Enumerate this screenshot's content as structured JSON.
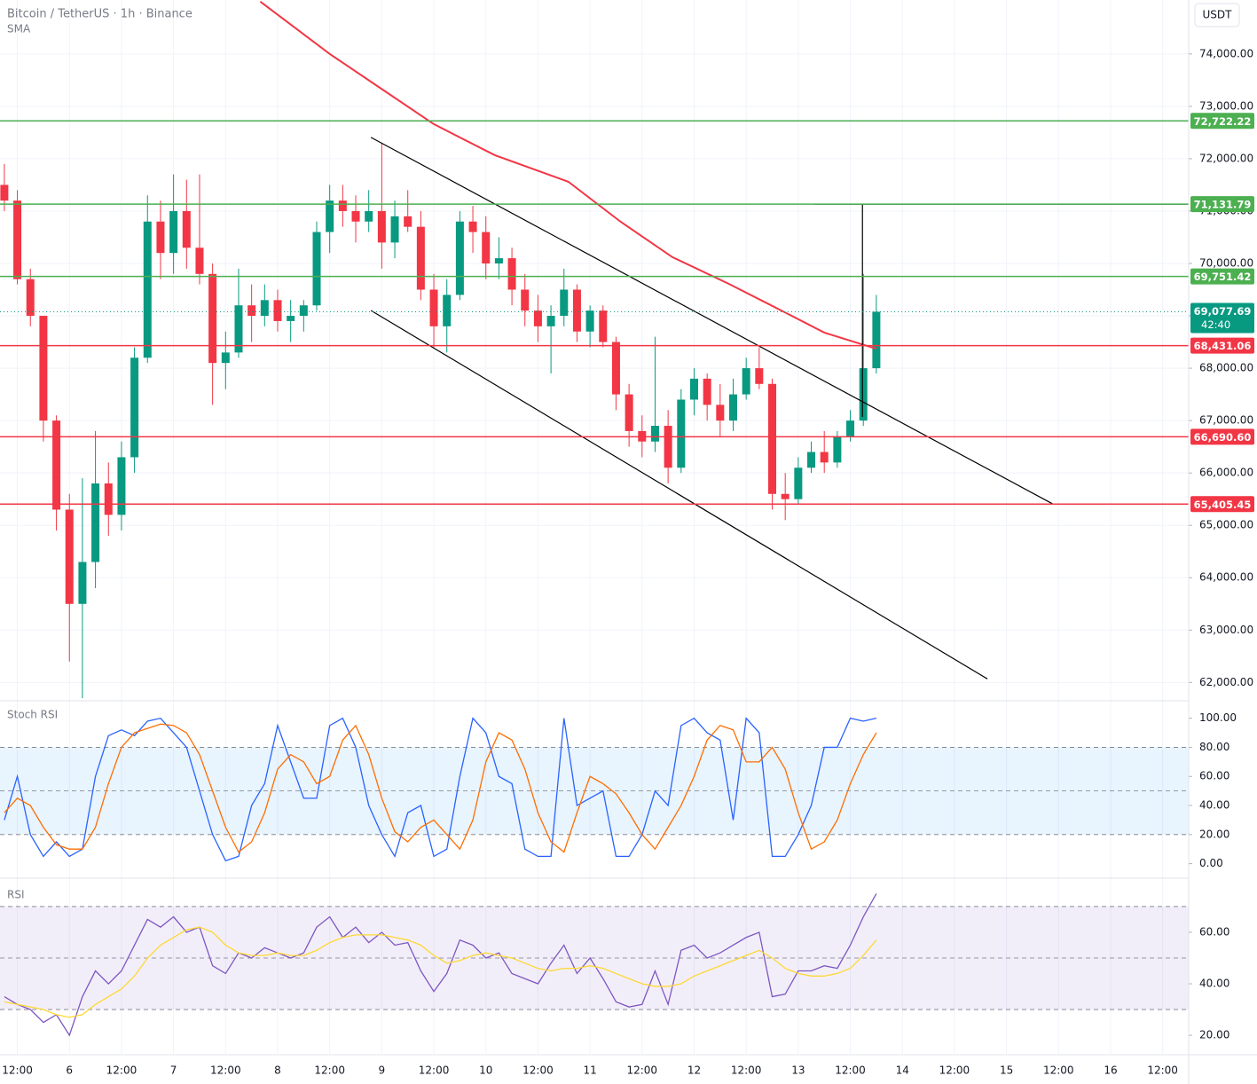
{
  "chart_data": [
    {
      "type": "candlestick",
      "title": "Bitcoin / TetherUS · 1h · Binance",
      "currency": "USDT",
      "grid": true,
      "up_color": "#089981",
      "down_color": "#f23645",
      "xlim": [
        -4,
        270
      ],
      "xticks": [
        {
          "value": 0,
          "label": "12:00"
        },
        {
          "value": 12,
          "label": "6"
        },
        {
          "value": 24,
          "label": "12:00"
        },
        {
          "value": 36,
          "label": "7"
        },
        {
          "value": 48,
          "label": "12:00"
        },
        {
          "value": 60,
          "label": "8"
        },
        {
          "value": 72,
          "label": "12:00"
        },
        {
          "value": 84,
          "label": "9"
        },
        {
          "value": 96,
          "label": "12:00"
        },
        {
          "value": 108,
          "label": "10"
        },
        {
          "value": 120,
          "label": "12:00"
        },
        {
          "value": 132,
          "label": "11"
        },
        {
          "value": 144,
          "label": "12:00"
        },
        {
          "value": 156,
          "label": "12"
        },
        {
          "value": 168,
          "label": "12:00"
        },
        {
          "value": 180,
          "label": "13"
        },
        {
          "value": 192,
          "label": "12:00"
        },
        {
          "value": 204,
          "label": "14"
        },
        {
          "value": 216,
          "label": "12:00"
        },
        {
          "value": 228,
          "label": "15"
        },
        {
          "value": 240,
          "label": "12:00"
        },
        {
          "value": 252,
          "label": "16"
        },
        {
          "value": 264,
          "label": "12:00"
        }
      ],
      "ylim": [
        61650,
        75030
      ],
      "yticks": [
        {
          "value": 62000,
          "label": "62,000.00"
        },
        {
          "value": 63000,
          "label": "63,000.00"
        },
        {
          "value": 64000,
          "label": "64,000.00"
        },
        {
          "value": 65000,
          "label": "65,000.00"
        },
        {
          "value": 66000,
          "label": "66,000.00"
        },
        {
          "value": 67000,
          "label": "67,000.00"
        },
        {
          "value": 68000,
          "label": "68,000.00"
        },
        {
          "value": 69000,
          "label": "69,000.00"
        },
        {
          "value": 70000,
          "label": "70,000.00"
        },
        {
          "value": 71000,
          "label": "71,000.00"
        },
        {
          "value": 72000,
          "label": "72,000.00"
        },
        {
          "value": 73000,
          "label": "73,000.00"
        },
        {
          "value": 74000,
          "label": "74,000.00"
        }
      ],
      "x": [
        -3,
        0,
        3,
        6,
        9,
        12,
        15,
        18,
        21,
        24,
        27,
        30,
        33,
        36,
        39,
        42,
        45,
        48,
        51,
        54,
        57,
        60,
        63,
        66,
        69,
        72,
        75,
        78,
        81,
        84,
        87,
        90,
        93,
        96,
        99,
        102,
        105,
        108,
        111,
        114,
        117,
        120,
        123,
        126,
        129,
        132,
        135,
        138,
        141,
        144,
        147,
        150,
        153,
        156,
        159,
        162,
        165,
        168,
        171,
        174,
        177,
        180,
        183,
        186,
        189,
        192,
        195,
        198
      ],
      "open": [
        71500,
        71200,
        69700,
        69000,
        67000,
        65300,
        63500,
        64300,
        65800,
        65200,
        66300,
        68200,
        70800,
        70200,
        71000,
        70300,
        69800,
        68100,
        68300,
        69200,
        69000,
        69300,
        68900,
        69000,
        69200,
        70600,
        71200,
        71000,
        70800,
        71000,
        70400,
        70900,
        70700,
        69500,
        68800,
        69400,
        70800,
        70600,
        70000,
        70100,
        69500,
        69100,
        68800,
        69000,
        69500,
        68700,
        69100,
        68500,
        67500,
        66800,
        66600,
        66900,
        66100,
        67400,
        67800,
        67300,
        67000,
        67500,
        68000,
        67700,
        65600,
        65500,
        66100,
        66400,
        66200,
        66700,
        67000,
        68000
      ],
      "high": [
        71900,
        71400,
        69900,
        69000,
        67100,
        65600,
        65900,
        66800,
        66200,
        66600,
        68400,
        71300,
        71200,
        71700,
        71600,
        71700,
        70000,
        68700,
        69900,
        69600,
        69600,
        69500,
        69300,
        69300,
        70800,
        71500,
        71500,
        71300,
        71400,
        72300,
        71200,
        71400,
        71000,
        69800,
        69700,
        71000,
        71100,
        70900,
        70500,
        70300,
        69800,
        69400,
        69200,
        69900,
        69600,
        69200,
        69200,
        68600,
        67700,
        67100,
        68600,
        67200,
        67600,
        68000,
        67900,
        67700,
        67800,
        68200,
        68400,
        67800,
        66000,
        66300,
        66600,
        66800,
        66800,
        67200,
        69800,
        69400
      ],
      "low": [
        71000,
        69600,
        68800,
        66600,
        64900,
        62400,
        61700,
        63800,
        64800,
        64900,
        66000,
        68100,
        69700,
        69800,
        69900,
        69600,
        67300,
        67600,
        68200,
        68500,
        68800,
        68700,
        68500,
        68700,
        69100,
        70200,
        70700,
        70400,
        70600,
        69900,
        70100,
        70600,
        69300,
        68400,
        68300,
        69300,
        70200,
        69700,
        69700,
        69200,
        68800,
        68500,
        67900,
        68800,
        68500,
        68400,
        68400,
        67200,
        66500,
        66300,
        66400,
        65800,
        66000,
        67100,
        67000,
        66700,
        66800,
        67400,
        67600,
        65300,
        65100,
        65400,
        66000,
        66000,
        66100,
        66600,
        66900,
        67900
      ],
      "close": [
        71200,
        69700,
        69000,
        67000,
        65300,
        63500,
        64300,
        65800,
        65200,
        66300,
        68200,
        70800,
        70200,
        71000,
        70300,
        69800,
        68100,
        68300,
        69200,
        69000,
        69300,
        68900,
        69000,
        69200,
        70600,
        71200,
        71000,
        70800,
        71000,
        70400,
        70900,
        70700,
        69500,
        68800,
        69400,
        70800,
        70600,
        70000,
        70100,
        69500,
        69100,
        68800,
        69000,
        69500,
        68700,
        69100,
        68500,
        67500,
        66800,
        66600,
        66900,
        66100,
        67400,
        67800,
        67300,
        67000,
        67500,
        68000,
        67700,
        65600,
        65500,
        66100,
        66400,
        66200,
        66700,
        67000,
        68000,
        69077.69
      ],
      "sma": {
        "name": "SMA",
        "color": "#f23645",
        "x": [
          56,
          72,
          84,
          96,
          110,
          127,
          139,
          151,
          164,
          174,
          186,
          198
        ],
        "values": [
          75000,
          74000,
          73330,
          72660,
          72070,
          71560,
          70800,
          70120,
          69610,
          69190,
          68680,
          68370
        ]
      },
      "levels": [
        {
          "value": 72722.22,
          "label": "72,722.22",
          "color": "#4caf50"
        },
        {
          "value": 71131.79,
          "label": "71,131.79",
          "color": "#4caf50"
        },
        {
          "value": 69751.42,
          "label": "69,751.42",
          "color": "#4caf50"
        },
        {
          "value": 68431.06,
          "label": "68,431.06",
          "color": "#f23645"
        },
        {
          "value": 66690.6,
          "label": "66,690.60",
          "color": "#f23645"
        },
        {
          "value": 65405.45,
          "label": "65,405.45",
          "color": "#f23645"
        }
      ],
      "last": {
        "value": 69077.69,
        "label": "69,077.69",
        "countdown": "42:40",
        "color": "#089981"
      },
      "trendlines": [
        {
          "x": [
            81.5,
            238.7
          ],
          "y": [
            72407,
            65407
          ]
        },
        {
          "x": [
            81.5,
            223.6
          ],
          "y": [
            69102,
            62068
          ]
        },
        {
          "x": [
            183.7,
            270
          ],
          "y": [
            71131.79,
            71131.79
          ]
        },
        {
          "x": [
            194.8,
            194.8
          ],
          "y": [
            71131.79,
            67070
          ]
        }
      ]
    },
    {
      "type": "line",
      "title": "Stoch RSI",
      "ylim": [
        -10,
        112
      ],
      "yticks": [
        {
          "value": 0,
          "label": "0.00"
        },
        {
          "value": 20,
          "label": "20.00"
        },
        {
          "value": 40,
          "label": "40.00"
        },
        {
          "value": 60,
          "label": "60.00"
        },
        {
          "value": 80,
          "label": "80.00"
        },
        {
          "value": 100,
          "label": "100.00"
        }
      ],
      "band": [
        20,
        80
      ],
      "band_color": "rgba(33,150,243,0.1)",
      "dashed": [
        20,
        50,
        80
      ],
      "series": [
        {
          "color": "#2962ff",
          "values": [
            30,
            60,
            20,
            5,
            15,
            5,
            10,
            60,
            88,
            92,
            88,
            98,
            100,
            90,
            80,
            50,
            20,
            2,
            5,
            40,
            55,
            95,
            70,
            45,
            45,
            95,
            100,
            80,
            40,
            20,
            5,
            35,
            40,
            5,
            10,
            60,
            100,
            90,
            60,
            55,
            10,
            5,
            5,
            100,
            40,
            45,
            50,
            5,
            5,
            20,
            50,
            40,
            95,
            100,
            90,
            85,
            30,
            100,
            90,
            5,
            5,
            20,
            40,
            80,
            80,
            100,
            98,
            100
          ]
        },
        {
          "color": "#ff6d00",
          "values": [
            35,
            45,
            40,
            25,
            13,
            10,
            10,
            25,
            55,
            80,
            90,
            93,
            96,
            95,
            90,
            75,
            50,
            25,
            8,
            15,
            35,
            65,
            75,
            70,
            55,
            60,
            85,
            95,
            75,
            45,
            22,
            15,
            25,
            30,
            20,
            10,
            30,
            70,
            90,
            85,
            65,
            35,
            15,
            8,
            35,
            60,
            55,
            48,
            35,
            20,
            10,
            25,
            40,
            60,
            85,
            95,
            92,
            70,
            70,
            80,
            65,
            35,
            10,
            15,
            30,
            55,
            75,
            90
          ]
        }
      ]
    },
    {
      "type": "line",
      "title": "RSI",
      "ylim": [
        12.8,
        81
      ],
      "yticks": [
        {
          "value": 20,
          "label": "20.00"
        },
        {
          "value": 40,
          "label": "40.00"
        },
        {
          "value": 60,
          "label": "60.00"
        }
      ],
      "band": [
        30,
        70
      ],
      "band_color": "rgba(126,87,194,0.1)",
      "dashed": [
        30,
        50,
        70
      ],
      "series": [
        {
          "color": "#7e57c2",
          "values": [
            35,
            32,
            30,
            25,
            28,
            20,
            35,
            45,
            40,
            45,
            55,
            65,
            62,
            66,
            60,
            62,
            47,
            44,
            52,
            50,
            54,
            52,
            50,
            52,
            62,
            66,
            58,
            62,
            56,
            60,
            55,
            56,
            45,
            37,
            44,
            57,
            55,
            50,
            52,
            44,
            42,
            40,
            48,
            55,
            44,
            50,
            42,
            33,
            31,
            32,
            45,
            32,
            53,
            55,
            50,
            52,
            55,
            58,
            60,
            35,
            36,
            45,
            45,
            47,
            46,
            55,
            66,
            75
          ]
        },
        {
          "color": "#fdd835",
          "values": [
            33,
            32,
            31,
            30,
            28,
            27,
            28,
            32,
            35,
            38,
            43,
            50,
            55,
            58,
            61,
            62,
            60,
            55,
            52,
            51,
            51,
            52,
            51,
            51,
            53,
            56,
            58,
            59,
            59,
            59,
            58,
            57,
            55,
            51,
            48,
            49,
            51,
            52,
            51,
            50,
            48,
            46,
            45,
            46,
            46,
            47,
            46,
            44,
            42,
            40,
            39,
            39,
            40,
            43,
            45,
            47,
            49,
            51,
            53,
            50,
            46,
            44,
            43,
            43,
            44,
            46,
            51,
            57
          ]
        }
      ]
    }
  ]
}
